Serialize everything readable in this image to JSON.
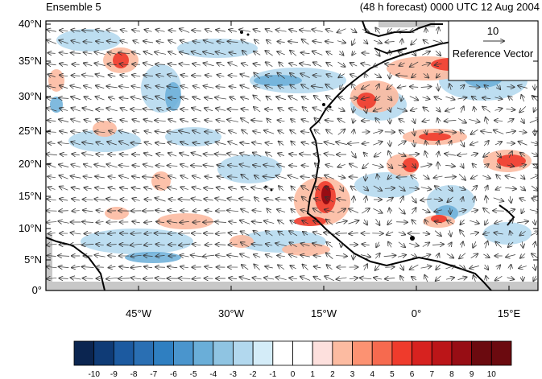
{
  "title_left": "Ensemble 5",
  "title_right": "(48 h forecast) 0000 UTC 12 Aug 2004",
  "reference_vector": {
    "magnitude": "10",
    "label": "Reference Vector"
  },
  "map": {
    "lon_range": [
      -60,
      20
    ],
    "lat_range": [
      0,
      40
    ],
    "lat_ticks": [
      "0°",
      "5°N",
      "10°N",
      "15°N",
      "20°N",
      "25°N",
      "30°N",
      "35°N",
      "40°N"
    ],
    "lon_ticks": [
      "45°W",
      "30°W",
      "15°W",
      "0°",
      "15°E"
    ],
    "field": "wind vectors with shaded anomaly"
  },
  "colorbar": {
    "labels": [
      "-10",
      "-9",
      "-8",
      "-7",
      "-6",
      "-5",
      "-4",
      "-3",
      "-2",
      "-1",
      "0",
      "1",
      "2",
      "3",
      "4",
      "5",
      "6",
      "7",
      "8",
      "9",
      "10"
    ],
    "colors": [
      "#0b2550",
      "#0f3b76",
      "#1c5aa0",
      "#2a6fb3",
      "#2f7fc1",
      "#4a95cd",
      "#6aaed8",
      "#8fc4e2",
      "#b2d8ee",
      "#d4ecf8",
      "#ffffff",
      "#ffffff",
      "#fde0dd",
      "#fcbba1",
      "#fc9272",
      "#f66a4f",
      "#ef3b2c",
      "#d7221f",
      "#bb1518",
      "#970d14",
      "#6b0a0f"
    ]
  }
}
